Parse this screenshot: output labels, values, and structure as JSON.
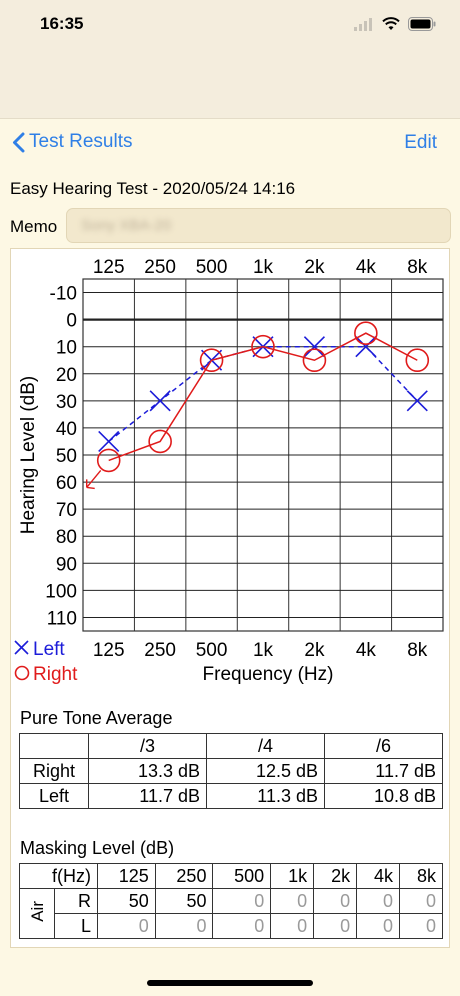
{
  "status_bar": {
    "time": "16:35"
  },
  "nav": {
    "back_label": "Test Results",
    "edit_label": "Edit"
  },
  "test": {
    "title": "Easy Hearing Test - 2020/05/24 14:16",
    "memo_label": "Memo",
    "memo_value": "Sony XBA-20"
  },
  "chart_data": {
    "type": "scatter",
    "frequencies": [
      "125",
      "250",
      "500",
      "1k",
      "2k",
      "4k",
      "8k"
    ],
    "y_ticks": [
      -10,
      0,
      10,
      20,
      30,
      40,
      50,
      60,
      70,
      80,
      90,
      100,
      110
    ],
    "ylim": [
      -15,
      115
    ],
    "ylabel": "Hearing Level (dB)",
    "xlabel": "Frequency (Hz)",
    "series": [
      {
        "name": "Left",
        "marker": "x",
        "line": "dashed",
        "color": "#1c1cd9",
        "values": [
          45,
          30,
          15,
          10,
          10,
          10,
          30
        ]
      },
      {
        "name": "Right",
        "marker": "o",
        "line": "solid",
        "color": "#e01b1b",
        "values": [
          52,
          45,
          15,
          10,
          15,
          5,
          15
        ]
      }
    ],
    "legend": [
      "Left",
      "Right"
    ],
    "legend_position": "bottom-left",
    "zero_line": true,
    "grid": true
  },
  "pta": {
    "title": "Pure Tone Average",
    "columns": [
      "/3",
      "/4",
      "/6"
    ],
    "rows": [
      {
        "label": "Right",
        "values": [
          "13.3 dB",
          "12.5 dB",
          "11.7 dB"
        ]
      },
      {
        "label": "Left",
        "values": [
          "11.7 dB",
          "11.3 dB",
          "10.8 dB"
        ]
      }
    ]
  },
  "masking": {
    "title": "Masking Level (dB)",
    "header_label": "f(Hz)",
    "frequencies": [
      "125",
      "250",
      "500",
      "1k",
      "2k",
      "4k",
      "8k"
    ],
    "group_label": "Air",
    "rows": [
      {
        "label": "R",
        "values": [
          "50",
          "50",
          "0",
          "0",
          "0",
          "0",
          "0"
        ]
      },
      {
        "label": "L",
        "values": [
          "0",
          "0",
          "0",
          "0",
          "0",
          "0",
          "0"
        ]
      }
    ]
  },
  "colors": {
    "accent": "#2f7fe6",
    "left": "#1c1cd9",
    "right": "#e01b1b",
    "background": "#fdf8e4"
  }
}
